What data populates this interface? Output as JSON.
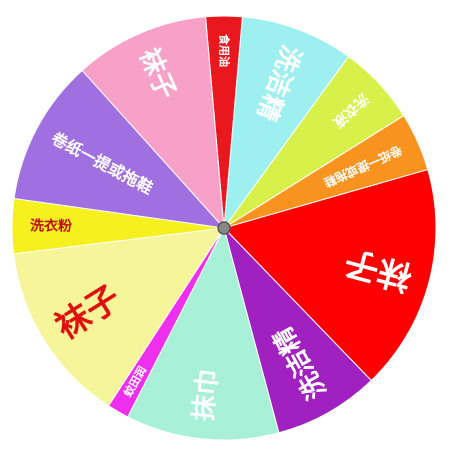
{
  "wheel": {
    "segments": [
      {
        "id": "cooking-oil",
        "label": "食用油",
        "color": "#e8181e",
        "text_color": "#ffffff",
        "start": -5,
        "end": 5
      },
      {
        "id": "dish-soap",
        "label": "洗洁精",
        "color": "#9ef0f0",
        "text_color": "#ffffff",
        "start": 5,
        "end": 36
      },
      {
        "id": "laundry-liquid",
        "label": "洗衣液",
        "color": "#d7f04a",
        "text_color": "#ffffff",
        "start": 36,
        "end": 58
      },
      {
        "id": "tissue-small",
        "label": "卷纸一提或拖鞋",
        "color": "#f7931e",
        "text_color": "#ffffff",
        "start": 58,
        "end": 74
      },
      {
        "id": "socks-red",
        "label": "袜子",
        "color": "#ff0000",
        "text_color": "#ffffff",
        "start": 74,
        "end": 136
      },
      {
        "id": "detergent-purple",
        "label": "洗洁精",
        "color": "#a020c0",
        "text_color": "#ffffff",
        "start": 136,
        "end": 165
      },
      {
        "id": "towel",
        "label": "抹巾",
        "color": "#a8f0d8",
        "text_color": "#ffffff",
        "start": 165,
        "end": 207
      },
      {
        "id": "soap-box",
        "label": "蚊田润",
        "color": "#ee30ee",
        "text_color": "#ffffff",
        "start": 207,
        "end": 213
      },
      {
        "id": "socks-yellow",
        "label": "袜子",
        "color": "#f7f59a",
        "text_color": "#e01010",
        "start": 213,
        "end": 263
      },
      {
        "id": "washing-powder",
        "label": "洗衣粉",
        "color": "#f5f01e",
        "text_color": "#c01010",
        "start": 263,
        "end": 278
      },
      {
        "id": "tissue-large",
        "label": "卷纸一提或拖鞋",
        "color": "#a070e0",
        "text_color": "#ffffff",
        "start": 278,
        "end": 318
      },
      {
        "id": "socks-pink",
        "label": "袜子",
        "color": "#f7a0c8",
        "text_color": "#ffffff",
        "start": 318,
        "end": 355
      }
    ],
    "center_pin": "spin-pin"
  }
}
